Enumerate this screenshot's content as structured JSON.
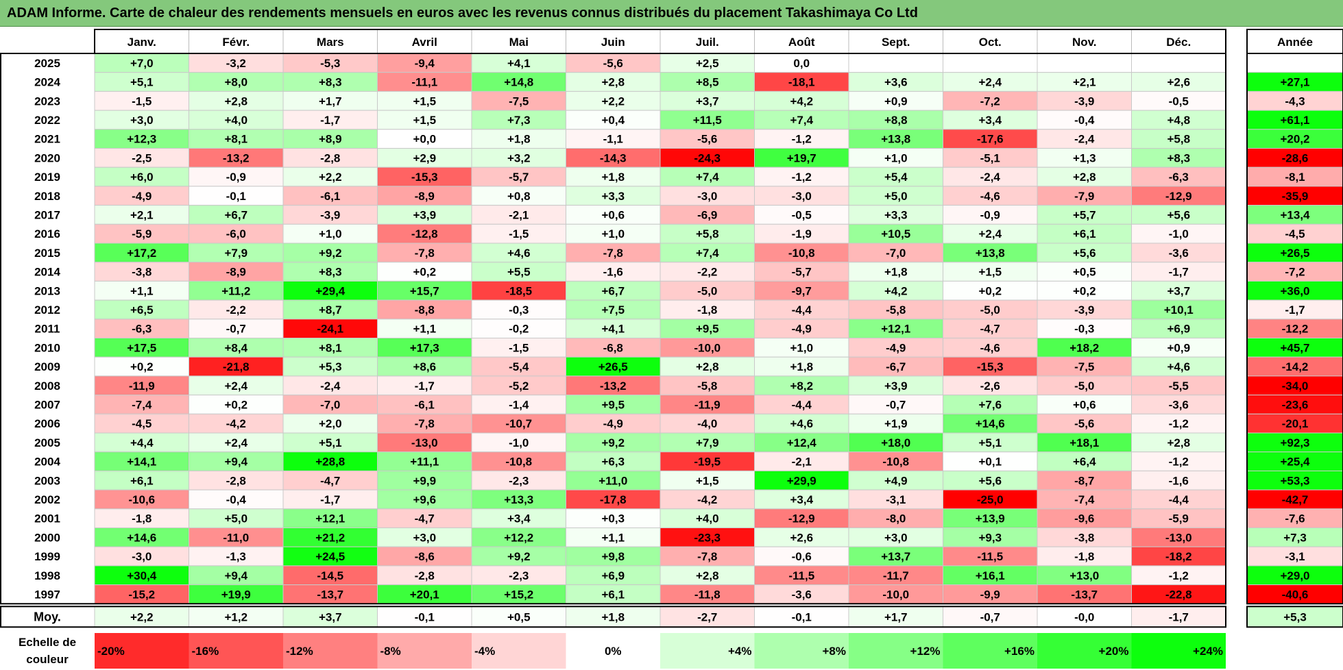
{
  "title": "ADAM Informe. Carte de chaleur des rendements mensuels en euros avec les revenus connus distribués du placement Takashimaya Co Ltd",
  "chart_data": {
    "type": "heatmap",
    "months": [
      "Janv.",
      "Févr.",
      "Mars",
      "Avril",
      "Mai",
      "Juin",
      "Juil.",
      "Août",
      "Sept.",
      "Oct.",
      "Nov.",
      "Déc."
    ],
    "annual_header": "Année",
    "avg_label": "Moy.",
    "scale_label": "Echelle de couleur",
    "rows": [
      {
        "year": "2025",
        "values": [
          "+7,0",
          "-3,2",
          "-5,3",
          "-9,4",
          "+4,1",
          "-5,6",
          "+2,5",
          "0,0",
          "",
          "",
          "",
          ""
        ],
        "annual": ""
      },
      {
        "year": "2024",
        "values": [
          "+5,1",
          "+8,0",
          "+8,3",
          "-11,1",
          "+14,8",
          "+2,8",
          "+8,5",
          "-18,1",
          "+3,6",
          "+2,4",
          "+2,1",
          "+2,6"
        ],
        "annual": "+27,1"
      },
      {
        "year": "2023",
        "values": [
          "-1,5",
          "+2,8",
          "+1,7",
          "+1,5",
          "-7,5",
          "+2,2",
          "+3,7",
          "+4,2",
          "+0,9",
          "-7,2",
          "-3,9",
          "-0,5"
        ],
        "annual": "-4,3"
      },
      {
        "year": "2022",
        "values": [
          "+3,0",
          "+4,0",
          "-1,7",
          "+1,5",
          "+7,3",
          "+0,4",
          "+11,5",
          "+7,4",
          "+8,8",
          "+3,4",
          "-0,4",
          "+4,8"
        ],
        "annual": "+61,1"
      },
      {
        "year": "2021",
        "values": [
          "+12,3",
          "+8,1",
          "+8,9",
          "+0,0",
          "+1,8",
          "-1,1",
          "-5,6",
          "-1,2",
          "+13,8",
          "-17,6",
          "-2,4",
          "+5,8"
        ],
        "annual": "+20,2"
      },
      {
        "year": "2020",
        "values": [
          "-2,5",
          "-13,2",
          "-2,8",
          "+2,9",
          "+3,2",
          "-14,3",
          "-24,3",
          "+19,7",
          "+1,0",
          "-5,1",
          "+1,3",
          "+8,3"
        ],
        "annual": "-28,6"
      },
      {
        "year": "2019",
        "values": [
          "+6,0",
          "-0,9",
          "+2,2",
          "-15,3",
          "-5,7",
          "+1,8",
          "+7,4",
          "-1,2",
          "+5,4",
          "-2,4",
          "+2,8",
          "-6,3"
        ],
        "annual": "-8,1"
      },
      {
        "year": "2018",
        "values": [
          "-4,9",
          "-0,1",
          "-6,1",
          "-8,9",
          "+0,8",
          "+3,3",
          "-3,0",
          "-3,0",
          "+5,0",
          "-4,6",
          "-7,9",
          "-12,9"
        ],
        "annual": "-35,9"
      },
      {
        "year": "2017",
        "values": [
          "+2,1",
          "+6,7",
          "-3,9",
          "+3,9",
          "-2,1",
          "+0,6",
          "-6,9",
          "-0,5",
          "+3,3",
          "-0,9",
          "+5,7",
          "+5,6"
        ],
        "annual": "+13,4"
      },
      {
        "year": "2016",
        "values": [
          "-5,9",
          "-6,0",
          "+1,0",
          "-12,8",
          "-1,5",
          "+1,0",
          "+5,8",
          "-1,9",
          "+10,5",
          "+2,4",
          "+6,1",
          "-1,0"
        ],
        "annual": "-4,5"
      },
      {
        "year": "2015",
        "values": [
          "+17,2",
          "+7,9",
          "+9,2",
          "-7,8",
          "+4,6",
          "-7,8",
          "+7,4",
          "-10,8",
          "-7,0",
          "+13,8",
          "+5,6",
          "-3,6"
        ],
        "annual": "+26,5"
      },
      {
        "year": "2014",
        "values": [
          "-3,8",
          "-8,9",
          "+8,3",
          "+0,2",
          "+5,5",
          "-1,6",
          "-2,2",
          "-5,7",
          "+1,8",
          "+1,5",
          "+0,5",
          "-1,7"
        ],
        "annual": "-7,2"
      },
      {
        "year": "2013",
        "values": [
          "+1,1",
          "+11,2",
          "+29,4",
          "+15,7",
          "-18,5",
          "+6,7",
          "-5,0",
          "-9,7",
          "+4,2",
          "+0,2",
          "+0,2",
          "+3,7"
        ],
        "annual": "+36,0"
      },
      {
        "year": "2012",
        "values": [
          "+6,5",
          "-2,2",
          "+8,7",
          "-8,8",
          "-0,3",
          "+7,5",
          "-1,8",
          "-4,4",
          "-5,8",
          "-5,0",
          "-3,9",
          "+10,1"
        ],
        "annual": "-1,7"
      },
      {
        "year": "2011",
        "values": [
          "-6,3",
          "-0,7",
          "-24,1",
          "+1,1",
          "-0,2",
          "+4,1",
          "+9,5",
          "-4,9",
          "+12,1",
          "-4,7",
          "-0,3",
          "+6,9"
        ],
        "annual": "-12,2"
      },
      {
        "year": "2010",
        "values": [
          "+17,5",
          "+8,4",
          "+8,1",
          "+17,3",
          "-1,5",
          "-6,8",
          "-10,0",
          "+1,0",
          "-4,9",
          "-4,6",
          "+18,2",
          "+0,9"
        ],
        "annual": "+45,7"
      },
      {
        "year": "2009",
        "values": [
          "+0,2",
          "-21,8",
          "+5,3",
          "+8,6",
          "-5,4",
          "+26,5",
          "+2,8",
          "+1,8",
          "-6,7",
          "-15,3",
          "-7,5",
          "+4,6"
        ],
        "annual": "-14,2"
      },
      {
        "year": "2008",
        "values": [
          "-11,9",
          "+2,4",
          "-2,4",
          "-1,7",
          "-5,2",
          "-13,2",
          "-5,8",
          "+8,2",
          "+3,9",
          "-2,6",
          "-5,0",
          "-5,5"
        ],
        "annual": "-34,0"
      },
      {
        "year": "2007",
        "values": [
          "-7,4",
          "+0,2",
          "-7,0",
          "-6,1",
          "-1,4",
          "+9,5",
          "-11,9",
          "-4,4",
          "-0,7",
          "+7,6",
          "+0,6",
          "-3,6"
        ],
        "annual": "-23,6"
      },
      {
        "year": "2006",
        "values": [
          "-4,5",
          "-4,2",
          "+2,0",
          "-7,8",
          "-10,7",
          "-4,9",
          "-4,0",
          "+4,6",
          "+1,9",
          "+14,6",
          "-5,6",
          "-1,2"
        ],
        "annual": "-20,1"
      },
      {
        "year": "2005",
        "values": [
          "+4,4",
          "+2,4",
          "+5,1",
          "-13,0",
          "-1,0",
          "+9,2",
          "+7,9",
          "+12,4",
          "+18,0",
          "+5,1",
          "+18,1",
          "+2,8"
        ],
        "annual": "+92,3"
      },
      {
        "year": "2004",
        "values": [
          "+14,1",
          "+9,4",
          "+28,8",
          "+11,1",
          "-10,8",
          "+6,3",
          "-19,5",
          "-2,1",
          "-10,8",
          "+0,1",
          "+6,4",
          "-1,2"
        ],
        "annual": "+25,4"
      },
      {
        "year": "2003",
        "values": [
          "+6,1",
          "-2,8",
          "-4,7",
          "+9,9",
          "-2,3",
          "+11,0",
          "+1,5",
          "+29,9",
          "+4,9",
          "+5,6",
          "-8,7",
          "-1,6"
        ],
        "annual": "+53,3"
      },
      {
        "year": "2002",
        "values": [
          "-10,6",
          "-0,4",
          "-1,7",
          "+9,6",
          "+13,3",
          "-17,8",
          "-4,2",
          "+3,4",
          "-3,1",
          "-25,0",
          "-7,4",
          "-4,4"
        ],
        "annual": "-42,7"
      },
      {
        "year": "2001",
        "values": [
          "-1,8",
          "+5,0",
          "+12,1",
          "-4,7",
          "+3,4",
          "+0,3",
          "+4,0",
          "-12,9",
          "-8,0",
          "+13,9",
          "-9,6",
          "-5,9"
        ],
        "annual": "-7,6"
      },
      {
        "year": "2000",
        "values": [
          "+14,6",
          "-11,0",
          "+21,2",
          "+3,0",
          "+12,2",
          "+1,1",
          "-23,3",
          "+2,6",
          "+3,0",
          "+9,3",
          "-3,8",
          "-13,0"
        ],
        "annual": "+7,3"
      },
      {
        "year": "1999",
        "values": [
          "-3,0",
          "-1,3",
          "+24,5",
          "-8,6",
          "+9,2",
          "+9,8",
          "-7,8",
          "-0,6",
          "+13,7",
          "-11,5",
          "-1,8",
          "-18,2"
        ],
        "annual": "-3,1"
      },
      {
        "year": "1998",
        "values": [
          "+30,4",
          "+9,4",
          "-14,5",
          "-2,8",
          "-2,3",
          "+6,9",
          "+2,8",
          "-11,5",
          "-11,7",
          "+16,1",
          "+13,0",
          "-1,2"
        ],
        "annual": "+29,0"
      },
      {
        "year": "1997",
        "values": [
          "-15,2",
          "+19,9",
          "-13,7",
          "+20,1",
          "+15,2",
          "+6,1",
          "-11,8",
          "-3,6",
          "-10,0",
          "-9,9",
          "-13,7",
          "-22,8"
        ],
        "annual": "-40,6"
      }
    ],
    "averages": [
      "+2,2",
      "+1,2",
      "+3,7",
      "-0,1",
      "+0,5",
      "+1,8",
      "-2,7",
      "-0,1",
      "+1,7",
      "-0,7",
      "-0,0",
      "-1,7"
    ],
    "annual_average": "+5,3",
    "scale": [
      "-20%",
      "-16%",
      "-12%",
      "-8%",
      "-4%",
      "0%",
      "+4%",
      "+8%",
      "+12%",
      "+16%",
      "+20%",
      "+24%"
    ],
    "colors": {
      "negative": "#ff0000",
      "positive": "#00ff00",
      "neutral": "#ffffff",
      "title_bar": "#84c87c"
    }
  }
}
